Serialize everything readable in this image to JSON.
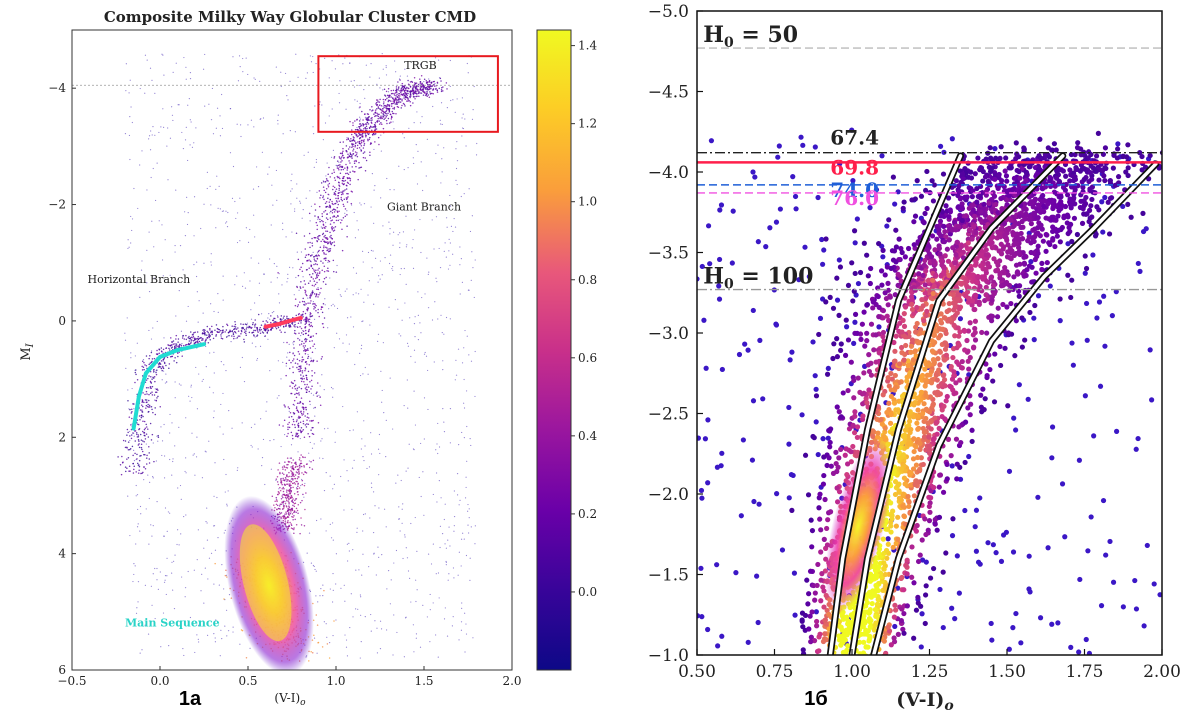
{
  "panels": {
    "left": {
      "tag": "1a"
    },
    "right": {
      "tag": "1б"
    }
  },
  "chart_data": [
    {
      "type": "scatter",
      "title": "Composite Milky Way Globular Cluster CMD",
      "xlabel": "(V-I)o",
      "ylabel": "MI",
      "xlim": [
        -0.5,
        2.0
      ],
      "ylim": [
        6,
        -5
      ],
      "inverted_y": true,
      "xticks": [
        -0.5,
        0.0,
        0.5,
        1.0,
        1.5,
        2.0
      ],
      "xtick_labels": [
        "−0.5",
        "0.0",
        "0.5",
        "1.0",
        "1.5",
        "2.0"
      ],
      "yticks": [
        -4,
        -2,
        0,
        2,
        4,
        6
      ],
      "ytick_labels": [
        "−4",
        "−2",
        "0",
        "2",
        "4",
        "6"
      ],
      "colormap": "plasma",
      "colorbar": {
        "min": -0.2,
        "max": 1.44,
        "ticks": [
          0.0,
          0.2,
          0.4,
          0.6,
          0.8,
          1.0,
          1.2,
          1.4
        ],
        "tick_labels": [
          "0.0",
          "0.2",
          "0.4",
          "0.6",
          "0.8",
          "1.0",
          "1.2",
          "1.4"
        ]
      },
      "tip_line": {
        "y": -4.05,
        "style": "dashed gray"
      },
      "trgb_box": {
        "x_range": [
          0.9,
          1.92
        ],
        "y_range": [
          -4.55,
          -3.25
        ],
        "color": "#e8191f"
      },
      "annotations": [
        {
          "text": "TRGB",
          "x": 1.48,
          "y": -4.33
        },
        {
          "text": "Giant Branch",
          "x": 1.5,
          "y": -1.9
        },
        {
          "text": "Horizontal Branch",
          "x": -0.12,
          "y": -0.65
        },
        {
          "text": "Main Sequence",
          "x": 0.07,
          "y": 5.25,
          "color": "#29d3c7"
        }
      ],
      "highlight_tracks": [
        {
          "name": "cyan",
          "color": "#21dcd2",
          "points": [
            [
              -0.15,
              1.85
            ],
            [
              -0.12,
              1.3
            ],
            [
              -0.08,
              0.9
            ],
            [
              0.0,
              0.62
            ],
            [
              0.1,
              0.5
            ],
            [
              0.25,
              0.4
            ]
          ]
        },
        {
          "name": "red",
          "color": "#ff3b5c",
          "points": [
            [
              0.6,
              0.1
            ],
            [
              0.68,
              0.05
            ],
            [
              0.76,
              -0.02
            ],
            [
              0.8,
              -0.05
            ]
          ]
        }
      ],
      "density_branches": [
        {
          "name": "main-sequence",
          "density": 1.3,
          "points": [
            [
              0.55,
              4.2
            ],
            [
              0.6,
              4.4
            ],
            [
              0.65,
              4.8
            ],
            [
              0.7,
              5.2
            ],
            [
              0.75,
              5.7
            ]
          ]
        },
        {
          "name": "subgiant",
          "density": 0.6,
          "points": [
            [
              0.7,
              3.6
            ],
            [
              0.72,
              3.2
            ],
            [
              0.74,
              2.8
            ],
            [
              0.77,
              2.4
            ]
          ]
        },
        {
          "name": "giant-branch",
          "density": 0.3,
          "points": [
            [
              0.78,
              2.0
            ],
            [
              0.82,
              0.5
            ],
            [
              0.88,
              -0.8
            ],
            [
              0.98,
              -2.0
            ],
            [
              1.1,
              -3.0
            ],
            [
              1.25,
              -3.6
            ],
            [
              1.4,
              -3.95
            ],
            [
              1.55,
              -4.05
            ]
          ]
        },
        {
          "name": "horizontal-branch",
          "density": 0.15,
          "points": [
            [
              -0.14,
              2.6
            ],
            [
              -0.12,
              1.8
            ],
            [
              -0.05,
              0.8
            ],
            [
              0.1,
              0.45
            ],
            [
              0.3,
              0.2
            ],
            [
              0.55,
              0.15
            ],
            [
              0.75,
              0.0
            ]
          ]
        }
      ]
    },
    {
      "type": "scatter",
      "title": "",
      "xlabel": "(V-I)o",
      "ylabel": "",
      "xlim": [
        0.5,
        2.0
      ],
      "ylim": [
        -1.0,
        -5.0
      ],
      "inverted_y": true,
      "xticks": [
        0.5,
        0.75,
        1.0,
        1.25,
        1.5,
        1.75,
        2.0
      ],
      "xtick_labels": [
        "0.50",
        "0.75",
        "1.00",
        "1.25",
        "1.50",
        "1.75",
        "2.00"
      ],
      "yticks": [
        -5.0,
        -4.5,
        -4.0,
        -3.5,
        -3.0,
        -2.5,
        -2.0,
        -1.5,
        -1.0
      ],
      "ytick_labels": [
        "−5.0",
        "−4.5",
        "−4.0",
        "−3.5",
        "−3.0",
        "−2.5",
        "−2.0",
        "−1.5",
        "−1.0"
      ],
      "colormap": "plasma",
      "hlines": [
        {
          "y": -4.77,
          "color": "#bbbbbb",
          "label": "H0 = 50",
          "label_x": 0.52,
          "style": "dashed"
        },
        {
          "y": -4.12,
          "color": "#222222",
          "label": "67.4",
          "label_x": 0.93,
          "style": "dashdot"
        },
        {
          "y": -4.06,
          "color": "#ff1f4b",
          "label": "69.8",
          "label_x": 0.93,
          "style": "solid"
        },
        {
          "y": -3.92,
          "color": "#1f5fd8",
          "label": "74.0",
          "label_x": 0.93,
          "style": "dashed"
        },
        {
          "y": -3.87,
          "color": "#f050e0",
          "label": "76.0",
          "label_x": 0.93,
          "style": "dashed"
        },
        {
          "y": -3.27,
          "color": "#999999",
          "label": "H0 = 100",
          "label_x": 0.52,
          "style": "dashdot"
        }
      ],
      "rgb_tracks": [
        {
          "name": "ridge-left",
          "points": [
            [
              0.93,
              -1.0
            ],
            [
              0.97,
              -1.6
            ],
            [
              1.05,
              -2.4
            ],
            [
              1.15,
              -3.2
            ],
            [
              1.25,
              -3.65
            ],
            [
              1.35,
              -4.1
            ]
          ]
        },
        {
          "name": "ridge-middle",
          "points": [
            [
              1.0,
              -1.0
            ],
            [
              1.05,
              -1.6
            ],
            [
              1.15,
              -2.4
            ],
            [
              1.28,
              -3.2
            ],
            [
              1.45,
              -3.65
            ],
            [
              1.68,
              -4.1
            ]
          ]
        },
        {
          "name": "ridge-right",
          "points": [
            [
              1.07,
              -1.0
            ],
            [
              1.15,
              -1.6
            ],
            [
              1.28,
              -2.3
            ],
            [
              1.45,
              -2.95
            ],
            [
              1.62,
              -3.35
            ],
            [
              1.78,
              -3.65
            ],
            [
              1.98,
              -4.05
            ]
          ]
        }
      ]
    }
  ]
}
